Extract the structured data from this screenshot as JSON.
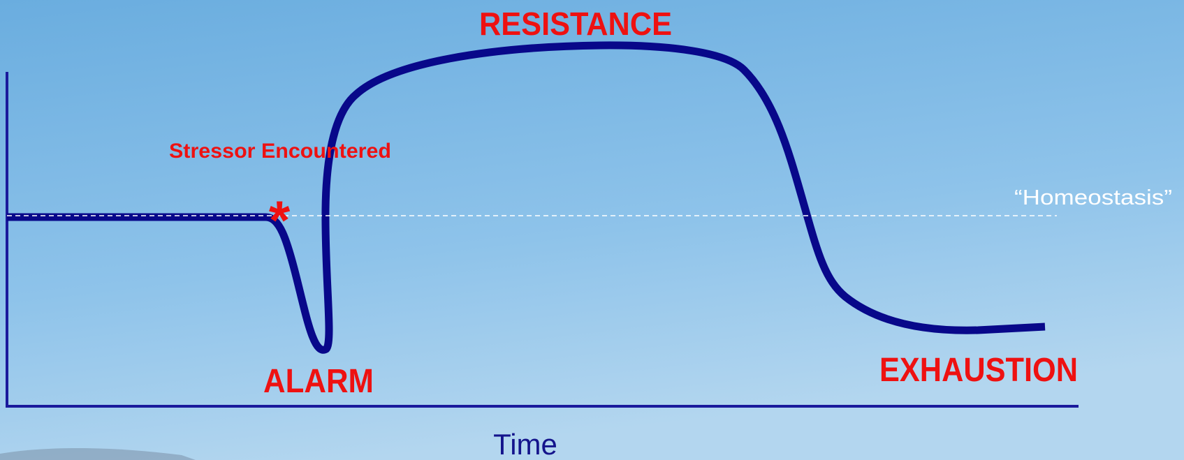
{
  "title": "RESISTANCE",
  "stressor_label": "Stressor Encountered",
  "stressor_marker": "*",
  "baseline_label": "“Homeostasis”",
  "phases": {
    "alarm": "ALARM",
    "exhaustion": "EXHAUSTION"
  },
  "x_axis_label": "Time"
}
